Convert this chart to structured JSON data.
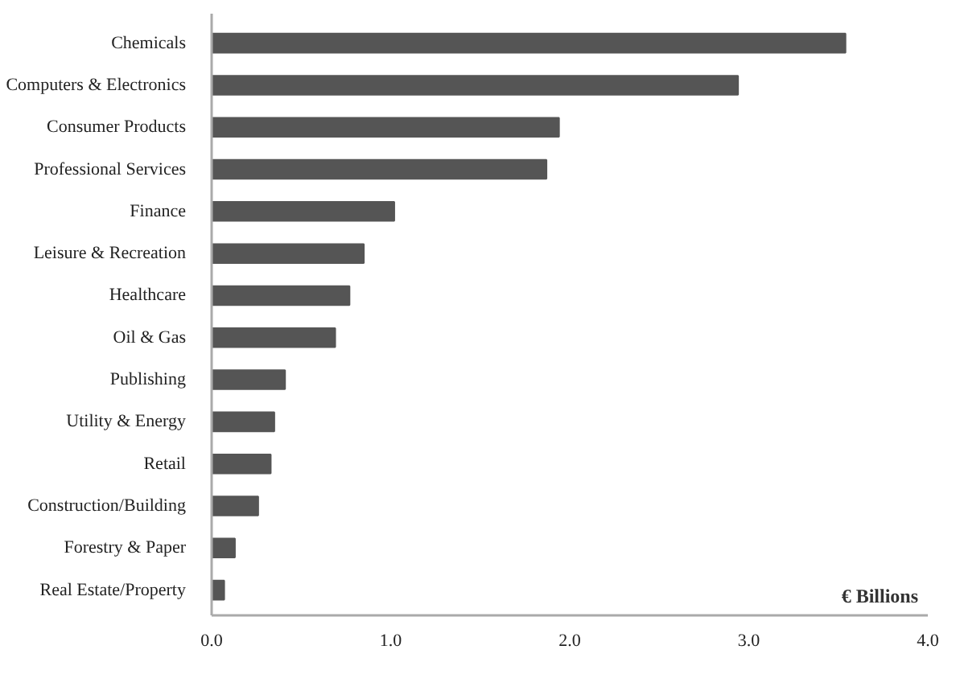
{
  "chart_data": {
    "type": "bar",
    "orientation": "horizontal",
    "xlabel": "€ Billions",
    "categories": [
      "Chemicals",
      "Computers & Electronics",
      "Consumer Products",
      "Professional Services",
      "Finance",
      "Leisure & Recreation",
      "Healthcare",
      "Oil & Gas",
      "Publishing",
      "Utility & Energy",
      "Retail",
      "Construction/Building",
      "Forestry & Paper",
      "Real Estate/Property"
    ],
    "values": [
      3.54,
      2.94,
      1.94,
      1.87,
      1.02,
      0.85,
      0.77,
      0.69,
      0.41,
      0.35,
      0.33,
      0.26,
      0.13,
      0.07
    ],
    "color": "#555555",
    "xlim": [
      0,
      4.0
    ],
    "xticks": [
      {
        "value": 0,
        "label": "0.0"
      },
      {
        "value": 1,
        "label": "1.0"
      },
      {
        "value": 2,
        "label": "2.0"
      },
      {
        "value": 3,
        "label": "3.0"
      },
      {
        "value": 4,
        "label": "4.0"
      }
    ],
    "grid": false
  }
}
